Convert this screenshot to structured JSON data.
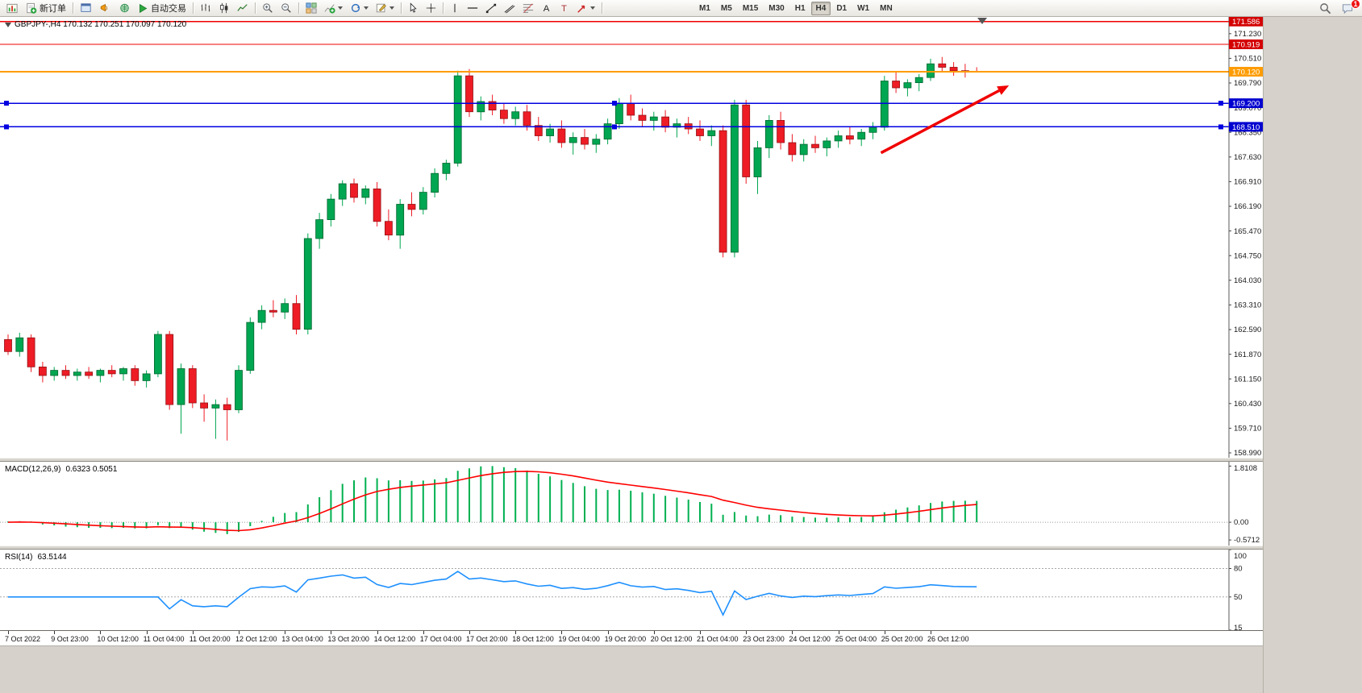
{
  "toolbar": {
    "new_order": "新订单",
    "autotrading": "自动交易",
    "timeframes": [
      "M1",
      "M5",
      "M15",
      "M30",
      "H1",
      "H4",
      "D1",
      "W1",
      "MN"
    ],
    "active_timeframe": "H4",
    "notification_badge": "1"
  },
  "chart": {
    "title": "GBPJPY-,H4 170.132 170.251 170.097 170.120",
    "symbol": "GBPJPY-",
    "timeframe": "H4",
    "ohlc": {
      "open": "170.132",
      "high": "170.251",
      "low": "170.097",
      "close": "170.120"
    }
  },
  "chart_data": {
    "type": "candlestick",
    "title": "GBPJPY- H4",
    "colors": {
      "up": "#00a651",
      "up_border": "#00672f",
      "down": "#ee1c25",
      "down_border": "#941114"
    },
    "price_axis": {
      "ymax": 171.72,
      "ymin": 158.85,
      "labels": [
        171.23,
        170.51,
        169.79,
        169.07,
        168.35,
        167.63,
        166.91,
        166.19,
        165.47,
        164.75,
        164.03,
        163.31,
        162.59,
        161.87,
        161.15,
        160.43,
        159.71,
        158.99
      ],
      "badges": [
        {
          "text": "171.586",
          "color": "#d40000",
          "text_color": "#ffffff"
        },
        {
          "text": "170.919",
          "color": "#d40000",
          "text_color": "#ffffff"
        },
        {
          "text": "170.120",
          "color": "#ff9c00",
          "text_color": "#ffffff"
        },
        {
          "text": "169.200",
          "color": "#0000d0",
          "text_color": "#ffffff"
        },
        {
          "text": "168.510",
          "color": "#0000d0",
          "text_color": "#ffffff"
        }
      ]
    },
    "levels": [
      {
        "price": 171.586,
        "color": "#f00000",
        "width": 1.2,
        "handles": false
      },
      {
        "price": 170.919,
        "color": "#f00000",
        "width": 1.2,
        "handles": false
      },
      {
        "price": 170.12,
        "color": "#ff9c00",
        "width": 2,
        "handles": false
      },
      {
        "price": 169.2,
        "color": "#0000e0",
        "width": 1.5,
        "handles": true
      },
      {
        "price": 168.51,
        "color": "#0000e0",
        "width": 1.5,
        "handles": true
      }
    ],
    "trend_arrow": {
      "from_candle": 75.7,
      "from_price": 167.75,
      "to_candle": 86.8,
      "to_price": 169.72,
      "color": "#f00000"
    },
    "candles": [
      [
        162.3,
        162.45,
        161.85,
        161.95
      ],
      [
        161.95,
        162.5,
        161.8,
        162.35
      ],
      [
        162.35,
        162.45,
        161.35,
        161.5
      ],
      [
        161.5,
        161.65,
        161.05,
        161.25
      ],
      [
        161.25,
        161.5,
        161.1,
        161.4
      ],
      [
        161.4,
        161.55,
        161.15,
        161.25
      ],
      [
        161.25,
        161.45,
        161.1,
        161.35
      ],
      [
        161.35,
        161.5,
        161.15,
        161.25
      ],
      [
        161.25,
        161.45,
        161.05,
        161.4
      ],
      [
        161.4,
        161.55,
        161.2,
        161.3
      ],
      [
        161.3,
        161.5,
        161.1,
        161.45
      ],
      [
        161.45,
        161.55,
        160.95,
        161.1
      ],
      [
        161.1,
        161.4,
        160.9,
        161.3
      ],
      [
        161.3,
        162.55,
        161.2,
        162.45
      ],
      [
        162.45,
        162.55,
        160.25,
        160.4
      ],
      [
        160.4,
        161.6,
        159.55,
        161.45
      ],
      [
        161.45,
        161.55,
        160.3,
        160.45
      ],
      [
        160.45,
        160.7,
        159.9,
        160.3
      ],
      [
        160.3,
        160.55,
        159.4,
        160.4
      ],
      [
        160.4,
        160.6,
        159.35,
        160.25
      ],
      [
        160.25,
        161.55,
        160.15,
        161.4
      ],
      [
        161.4,
        162.95,
        161.3,
        162.8
      ],
      [
        162.8,
        163.3,
        162.6,
        163.15
      ],
      [
        163.15,
        163.45,
        162.95,
        163.1
      ],
      [
        163.1,
        163.5,
        162.9,
        163.35
      ],
      [
        163.35,
        163.6,
        162.45,
        162.6
      ],
      [
        162.6,
        165.4,
        162.45,
        165.25
      ],
      [
        165.25,
        166.0,
        164.95,
        165.8
      ],
      [
        165.8,
        166.55,
        165.6,
        166.4
      ],
      [
        166.4,
        166.95,
        166.2,
        166.85
      ],
      [
        166.85,
        167.0,
        166.3,
        166.45
      ],
      [
        166.45,
        166.8,
        166.25,
        166.7
      ],
      [
        166.7,
        166.9,
        165.6,
        165.75
      ],
      [
        165.75,
        166.1,
        165.2,
        165.35
      ],
      [
        165.35,
        166.4,
        164.95,
        166.25
      ],
      [
        166.25,
        166.6,
        165.9,
        166.1
      ],
      [
        166.1,
        166.75,
        165.95,
        166.6
      ],
      [
        166.6,
        167.3,
        166.45,
        167.15
      ],
      [
        167.15,
        167.55,
        166.95,
        167.45
      ],
      [
        167.45,
        170.15,
        167.35,
        170.0
      ],
      [
        170.0,
        170.2,
        168.8,
        168.95
      ],
      [
        168.95,
        169.4,
        168.7,
        169.25
      ],
      [
        169.25,
        169.45,
        168.85,
        169.0
      ],
      [
        169.0,
        169.2,
        168.6,
        168.75
      ],
      [
        168.75,
        169.1,
        168.55,
        168.95
      ],
      [
        168.95,
        169.15,
        168.4,
        168.55
      ],
      [
        168.55,
        168.8,
        168.1,
        168.25
      ],
      [
        168.25,
        168.6,
        168.05,
        168.45
      ],
      [
        168.45,
        168.7,
        167.9,
        168.05
      ],
      [
        168.05,
        168.35,
        167.7,
        168.2
      ],
      [
        168.2,
        168.45,
        167.85,
        168.0
      ],
      [
        168.0,
        168.3,
        167.75,
        168.15
      ],
      [
        168.15,
        168.75,
        168.0,
        168.6
      ],
      [
        168.6,
        169.35,
        168.45,
        169.2
      ],
      [
        169.2,
        169.45,
        168.7,
        168.85
      ],
      [
        168.85,
        169.05,
        168.5,
        168.7
      ],
      [
        168.7,
        168.95,
        168.4,
        168.8
      ],
      [
        168.8,
        169.0,
        168.35,
        168.5
      ],
      [
        168.5,
        168.75,
        168.2,
        168.6
      ],
      [
        168.6,
        168.8,
        168.3,
        168.45
      ],
      [
        168.45,
        168.7,
        168.1,
        168.25
      ],
      [
        168.25,
        168.55,
        167.95,
        168.4
      ],
      [
        168.4,
        168.55,
        164.7,
        164.85
      ],
      [
        164.85,
        169.3,
        164.7,
        169.15
      ],
      [
        169.15,
        169.3,
        166.85,
        167.05
      ],
      [
        167.05,
        168.1,
        166.55,
        167.9
      ],
      [
        167.9,
        168.85,
        167.6,
        168.7
      ],
      [
        168.7,
        168.95,
        167.85,
        168.05
      ],
      [
        168.05,
        168.3,
        167.5,
        167.7
      ],
      [
        167.7,
        168.15,
        167.5,
        168.0
      ],
      [
        168.0,
        168.25,
        167.75,
        167.9
      ],
      [
        167.9,
        168.2,
        167.65,
        168.1
      ],
      [
        168.1,
        168.4,
        167.9,
        168.25
      ],
      [
        168.25,
        168.5,
        168.0,
        168.15
      ],
      [
        168.15,
        168.45,
        167.95,
        168.35
      ],
      [
        168.35,
        168.65,
        168.15,
        168.5
      ],
      [
        168.5,
        170.0,
        168.4,
        169.85
      ],
      [
        169.85,
        170.1,
        169.5,
        169.65
      ],
      [
        169.65,
        169.9,
        169.4,
        169.8
      ],
      [
        169.8,
        170.05,
        169.55,
        169.95
      ],
      [
        169.95,
        170.5,
        169.85,
        170.35
      ],
      [
        170.35,
        170.55,
        170.1,
        170.25
      ],
      [
        170.25,
        170.4,
        170.0,
        170.15
      ],
      [
        170.15,
        170.35,
        169.95,
        170.13
      ],
      [
        170.132,
        170.251,
        170.097,
        170.12
      ]
    ],
    "time_labels": [
      {
        "i": 0,
        "t": "7 Oct 2022"
      },
      {
        "i": 4,
        "t": "9 Oct 23:00"
      },
      {
        "i": 8,
        "t": "10 Oct 12:00"
      },
      {
        "i": 12,
        "t": "11 Oct 04:00"
      },
      {
        "i": 16,
        "t": "11 Oct 20:00"
      },
      {
        "i": 20,
        "t": "12 Oct 12:00"
      },
      {
        "i": 24,
        "t": "13 Oct 04:00"
      },
      {
        "i": 28,
        "t": "13 Oct 20:00"
      },
      {
        "i": 32,
        "t": "14 Oct 12:00"
      },
      {
        "i": 36,
        "t": "17 Oct 04:00"
      },
      {
        "i": 40,
        "t": "17 Oct 20:00"
      },
      {
        "i": 44,
        "t": "18 Oct 12:00"
      },
      {
        "i": 48,
        "t": "19 Oct 04:00"
      },
      {
        "i": 52,
        "t": "19 Oct 20:00"
      },
      {
        "i": 56,
        "t": "20 Oct 12:00"
      },
      {
        "i": 60,
        "t": "21 Oct 04:00"
      },
      {
        "i": 64,
        "t": "23 Oct 23:00"
      },
      {
        "i": 68,
        "t": "24 Oct 12:00"
      },
      {
        "i": 72,
        "t": "25 Oct 04:00"
      },
      {
        "i": 76,
        "t": "25 Oct 20:00"
      },
      {
        "i": 80,
        "t": "26 Oct 12:00"
      }
    ],
    "macd": {
      "label": "MACD(12,26,9)",
      "value_text": "0.6323 0.5051",
      "current_macd": 0.6323,
      "current_signal": 0.5051,
      "axis_labels": [
        {
          "v": 1.8108,
          "text": "1.8108"
        },
        {
          "v": 0,
          "text": "0.00"
        },
        {
          "v": -0.5712,
          "text": "-0.5712"
        }
      ],
      "ymax": 1.95,
      "ymin": -0.75,
      "bar_color": "#00b050",
      "signal_color": "#ff0000"
    },
    "rsi": {
      "label": "RSI(14)",
      "value_text": "63.5144",
      "current": 63.5144,
      "axis_labels": [
        {
          "v": 100,
          "text": "100"
        },
        {
          "v": 80,
          "text": "80"
        },
        {
          "v": 50,
          "text": "50"
        },
        {
          "v": 15,
          "text": "15"
        }
      ],
      "levels": [
        80,
        50
      ],
      "ymax": 100,
      "ymin": 15,
      "line_color": "#1e90ff"
    }
  }
}
